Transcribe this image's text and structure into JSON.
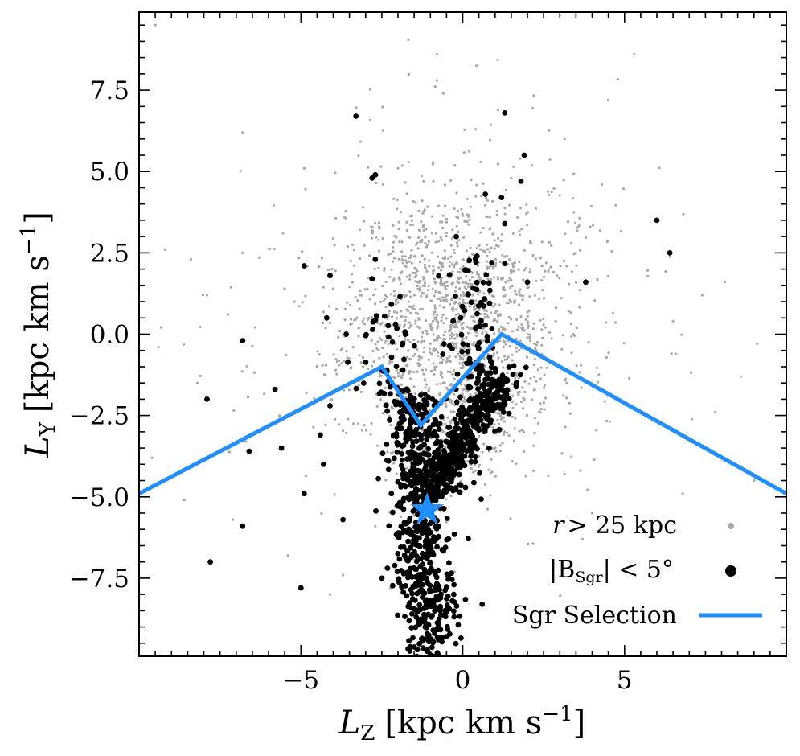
{
  "chart_data": {
    "type": "scatter",
    "title": "",
    "xlabel": "L_Z [kpc km s^-1]",
    "ylabel": "L_Y [kpc km s^-1]",
    "xlabel_parts": {
      "sym": "L",
      "sub": "Z",
      "units": "[kpc km s",
      "exp": "−1",
      "close": "]"
    },
    "ylabel_parts": {
      "sym": "L",
      "sub": "Y",
      "units": "[kpc km s",
      "exp": "−1",
      "close": "]"
    },
    "xlim": [
      -10,
      10
    ],
    "ylim": [
      -9.9,
      9.9
    ],
    "x_ticks": [
      -5,
      0,
      5
    ],
    "x_tick_labels": [
      "−5",
      "0",
      "5"
    ],
    "y_ticks": [
      -7.5,
      -5.0,
      -2.5,
      0.0,
      2.5,
      5.0,
      7.5
    ],
    "y_tick_labels": [
      "−7.5",
      "−5.0",
      "−2.5",
      "0.0",
      "2.5",
      "5.0",
      "7.5"
    ],
    "legend_position": "lower-right",
    "legend": [
      {
        "label_pre": "r > 25 kpc",
        "marker": "gray-dot"
      },
      {
        "label_pre": "|B",
        "label_sub": "Sgr",
        "label_post": "| < 5°",
        "marker": "black-dot"
      },
      {
        "label_pre": "Sgr Selection",
        "marker": "blue-line"
      }
    ],
    "colors": {
      "far": "#a9a9a9",
      "core": "#000000",
      "selection": "#1f8fff"
    },
    "series": [
      {
        "name": "r > 25 kpc",
        "kind": "points",
        "color": "#a9a9a9",
        "points": [
          [
            -9.5,
            9.5
          ],
          [
            -0.8,
            8.6
          ],
          [
            -0.8,
            7.8
          ],
          [
            -0.6,
            7.4
          ],
          [
            5.3,
            8.6
          ],
          [
            4.5,
            7.2
          ],
          [
            -6.8,
            6.2
          ],
          [
            0.4,
            6.3
          ],
          [
            -2.0,
            5.1
          ],
          [
            -4.9,
            5.1
          ],
          [
            1.5,
            4.8
          ],
          [
            4.3,
            4.6
          ],
          [
            -9.2,
            2.6
          ],
          [
            -8.4,
            2.3
          ],
          [
            -6.8,
            2.5
          ],
          [
            -5.2,
            1.0
          ],
          [
            -7.9,
            1.2
          ],
          [
            7.4,
            1.2
          ],
          [
            8.1,
            1.6
          ],
          [
            6.5,
            0.4
          ],
          [
            -9.4,
            -0.4
          ],
          [
            9.1,
            -0.3
          ],
          [
            8.6,
            -1.3
          ],
          [
            7.8,
            -2.4
          ],
          [
            -8.2,
            -1.5
          ],
          [
            -6.7,
            -3.3
          ],
          [
            -9.6,
            -3.8
          ],
          [
            9.0,
            -4.5
          ],
          [
            -8.6,
            -5.1
          ],
          [
            6.8,
            -4.9
          ],
          [
            -7.1,
            -5.7
          ],
          [
            4.0,
            -5.5
          ],
          [
            -5.4,
            -6.8
          ],
          [
            3.7,
            -6.3
          ],
          [
            -4.1,
            -8.0
          ],
          [
            2.6,
            -8.6
          ]
        ],
        "cluster": {
          "cx": -0.3,
          "cy": 0.4,
          "sx": 1.6,
          "sy": 1.9,
          "n": 1200,
          "seed": 11
        },
        "diffuse": {
          "cx": -0.5,
          "cy": 0.5,
          "sx": 3.0,
          "sy": 3.1,
          "n": 450,
          "seed": 23
        },
        "trail": {
          "x0": -1.2,
          "y0": -4.5,
          "x1": 1.0,
          "y1": -1.8,
          "spread": 0.6,
          "n": 220,
          "seed": 37
        }
      },
      {
        "name": "|B_Sgr| < 5°",
        "kind": "points",
        "color": "#000000",
        "points": [
          [
            -3.3,
            6.7
          ],
          [
            1.3,
            6.8
          ],
          [
            1.9,
            5.5
          ],
          [
            -2.7,
            4.9
          ],
          [
            -2.8,
            4.8
          ],
          [
            1.8,
            4.7
          ],
          [
            0.7,
            4.3
          ],
          [
            1.2,
            4.2
          ],
          [
            1.3,
            3.4
          ],
          [
            -0.2,
            3.0
          ],
          [
            6.0,
            3.5
          ],
          [
            6.4,
            2.5
          ],
          [
            -4.9,
            2.1
          ],
          [
            -4.1,
            1.8
          ],
          [
            -2.7,
            2.3
          ],
          [
            -2.8,
            1.7
          ],
          [
            3.8,
            1.6
          ],
          [
            -6.8,
            -0.2
          ],
          [
            -5.8,
            -1.7
          ],
          [
            -7.9,
            -2.0
          ],
          [
            -4.2,
            0.5
          ],
          [
            -3.6,
            0.0
          ],
          [
            -4.1,
            -2.2
          ],
          [
            -4.4,
            -3.1
          ],
          [
            -6.6,
            -3.6
          ],
          [
            -5.6,
            -3.5
          ],
          [
            -4.3,
            -4.0
          ],
          [
            -4.9,
            -4.9
          ],
          [
            -6.8,
            -5.9
          ],
          [
            -7.8,
            -7.0
          ],
          [
            -5.0,
            -7.8
          ],
          [
            0.6,
            -8.3
          ],
          [
            -2.5,
            -7.5
          ],
          [
            -3.7,
            -5.7
          ],
          [
            2.0,
            1.6
          ],
          [
            0.9,
            2.2
          ]
        ],
        "stream": [
          {
            "x0": -1.6,
            "y0": -1.8,
            "x1": -1.0,
            "y1": -9.8,
            "spread": 0.42,
            "n": 620,
            "seed": 5
          },
          {
            "x0": -1.0,
            "y0": -4.8,
            "x1": 1.2,
            "y1": -1.2,
            "spread": 0.38,
            "n": 480,
            "seed": 9
          },
          {
            "x0": 0.2,
            "y0": -2.0,
            "x1": 0.4,
            "y1": 2.0,
            "spread": 0.45,
            "n": 70,
            "seed": 13
          },
          {
            "x0": -2.2,
            "y0": -2.2,
            "x1": -2.6,
            "y1": 1.0,
            "spread": 0.45,
            "n": 40,
            "seed": 17
          }
        ]
      },
      {
        "name": "Sgr Selection",
        "kind": "line",
        "color": "#1f8fff",
        "x": [
          -10.0,
          -2.5,
          -1.3,
          1.2,
          10.0
        ],
        "y": [
          -4.9,
          -1.0,
          -2.8,
          0.0,
          -4.9
        ]
      }
    ],
    "sgr_marker": {
      "x": -1.1,
      "y": -5.4,
      "symbol": "star",
      "color": "#1f8fff"
    }
  }
}
